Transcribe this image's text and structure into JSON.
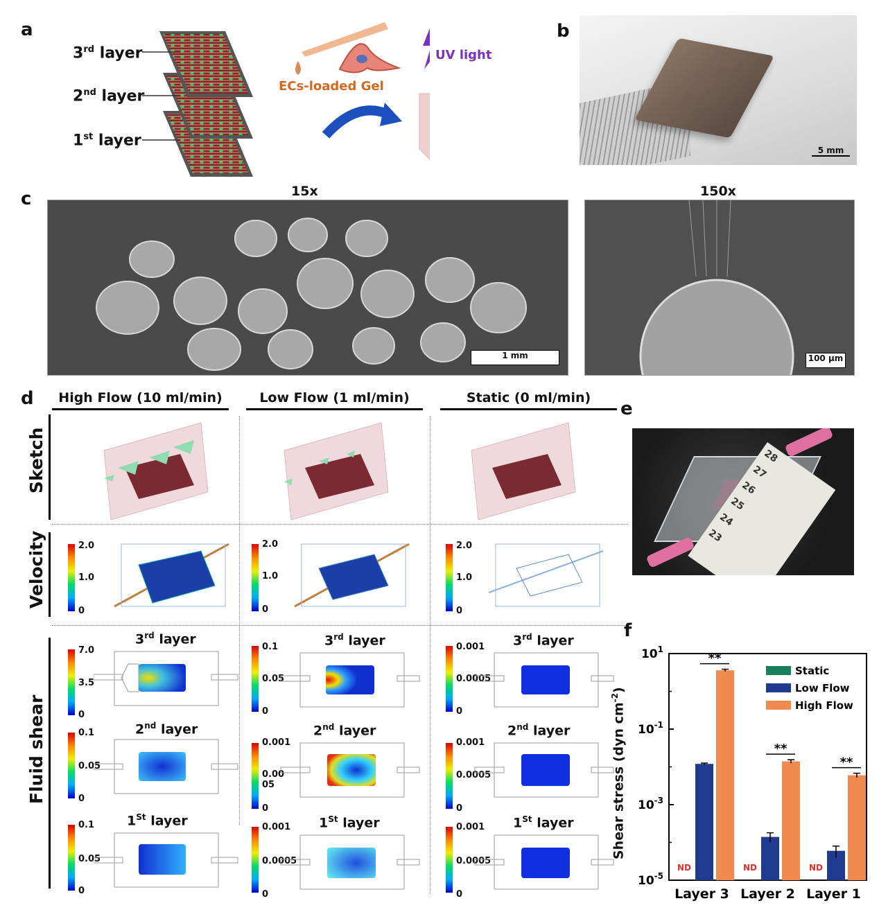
{
  "panels": {
    "a": "a",
    "b": "b",
    "c": "c",
    "d": "d",
    "e": "e",
    "f": "f"
  },
  "panel_a": {
    "layer3": {
      "base": "3",
      "sup": "rd",
      "rest": " layer"
    },
    "layer2": {
      "base": "2",
      "sup": "nd",
      "rest": " layer"
    },
    "layer1": {
      "base": "1",
      "sup": "st",
      "rest": " layer"
    },
    "gel_label": "ECs-loaded Gel",
    "uv_label": "UV light"
  },
  "panel_b": {
    "scale": "5 mm"
  },
  "panel_c": {
    "mag_left": "15x",
    "mag_right": "150x",
    "scale_left": "1 mm",
    "scale_right": "100 µm"
  },
  "panel_d": {
    "columns": [
      "High Flow  (10 ml/min)",
      "Low Flow (1 ml/min)",
      "Static (0 ml/min)"
    ],
    "rows": [
      "Sketch",
      "Velocity",
      "Fluid shear"
    ],
    "velocity_ticks": [
      "2.0",
      "1.0",
      "0"
    ],
    "shear": {
      "high": {
        "l3": [
          "7.0",
          "3.5",
          "0"
        ],
        "l2": [
          "0.1",
          "0.05",
          "0"
        ],
        "l1": [
          "0.1",
          "0.05",
          "0"
        ]
      },
      "low": {
        "l3": [
          "0.1",
          "0.05",
          "0"
        ],
        "l2": [
          "0.001",
          "0.00\n05",
          "0"
        ],
        "l1": [
          "0.001",
          "0.0005",
          "0"
        ]
      },
      "static": {
        "l3": [
          "0.001",
          "0.0005",
          "0"
        ],
        "l2": [
          "0.001",
          "0.0005",
          "0"
        ],
        "l1": [
          "0.001",
          "0.0005",
          "0"
        ]
      }
    },
    "layer_titles": {
      "l3": {
        "base": "3",
        "sup": "rd",
        "rest": " layer"
      },
      "l2": {
        "base": "2",
        "sup": "nd",
        "rest": " layer"
      },
      "l1": {
        "base": "1",
        "sup": "St",
        "rest": " layer"
      }
    }
  },
  "panel_e": {
    "ruler_numbers": [
      "23",
      "24",
      "25",
      "26",
      "27",
      "28"
    ]
  },
  "colors": {
    "static": "#1a7f5f",
    "low": "#1f3a8f",
    "high": "#f08a4f",
    "nd": "#e03030"
  },
  "chart_data": {
    "type": "bar",
    "categories": [
      "Layer 3",
      "Layer 2",
      "Layer 1"
    ],
    "series": [
      {
        "name": "Static",
        "values": [
          null,
          null,
          null
        ],
        "labels": [
          "ND",
          "ND",
          "ND"
        ]
      },
      {
        "name": "Low Flow",
        "values": [
          0.012,
          0.00014,
          6e-05
        ],
        "errors": [
          0.0006,
          4e-05,
          2e-05
        ]
      },
      {
        "name": "High Flow",
        "values": [
          3.6,
          0.014,
          0.006
        ],
        "errors": [
          0.25,
          0.0015,
          0.0008
        ]
      }
    ],
    "ylabel_main": "Shear stress  (dyn cm",
    "ylabel_sup": "-2",
    "ylabel_end": ")",
    "yscale": "log",
    "ylim": [
      1e-05,
      10
    ],
    "yticks": [
      {
        "base": "10",
        "exp": "-5",
        "v": 1e-05
      },
      {
        "base": "10",
        "exp": "-3",
        "v": 0.001
      },
      {
        "base": "10",
        "exp": "-1",
        "v": 0.1
      },
      {
        "base": "10",
        "exp": "1",
        "v": 10
      }
    ],
    "significance": [
      "**",
      "**",
      "**"
    ],
    "nd_label": "ND",
    "legend_position": "top-right"
  }
}
